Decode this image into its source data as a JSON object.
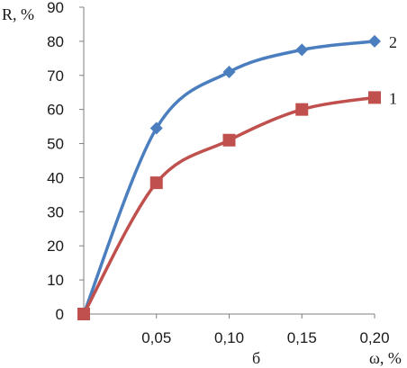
{
  "chart_data": {
    "type": "line",
    "title": "",
    "xlabel": "ω, %",
    "ylabel": "R, %",
    "panel_label": "б",
    "x": [
      0,
      0.05,
      0.1,
      0.15,
      0.2
    ],
    "x_tick_labels": [
      "0,05",
      "0,10",
      "0,15",
      "0,20"
    ],
    "x_tick_values": [
      0.05,
      0.1,
      0.15,
      0.2
    ],
    "xlim": [
      0,
      0.2
    ],
    "ylim": [
      0,
      90
    ],
    "y_ticks": [
      0,
      10,
      20,
      30,
      40,
      50,
      60,
      70,
      80,
      90
    ],
    "grid": false,
    "smooth": true,
    "series": [
      {
        "name": "2",
        "values": [
          0,
          54.5,
          71,
          77.5,
          80
        ],
        "color": "#4a7ebf",
        "marker": "diamond"
      },
      {
        "name": "1",
        "values": [
          0,
          38.5,
          51,
          60,
          63.5
        ],
        "color": "#c0504d",
        "marker": "square"
      }
    ]
  }
}
